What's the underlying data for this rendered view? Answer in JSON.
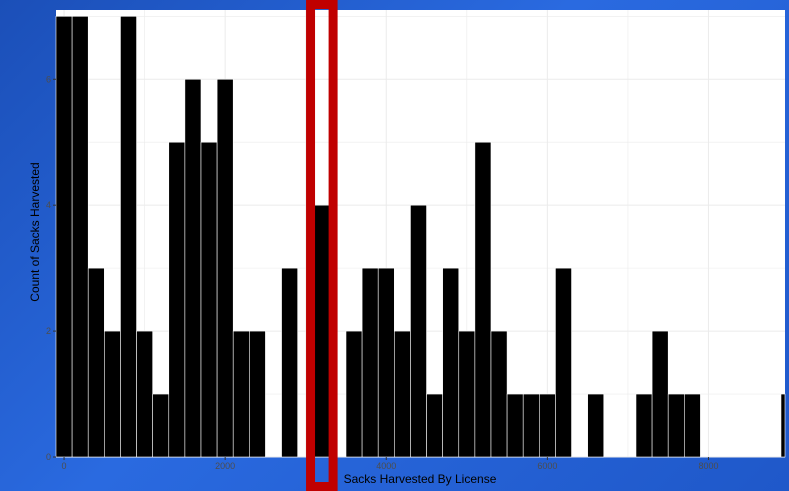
{
  "chart_data": {
    "type": "bar",
    "xlabel": "Sacks Harvested By License",
    "ylabel": "Count of Sacks Harvested",
    "xlim": [
      -100,
      8950
    ],
    "ylim": [
      0,
      7.1
    ],
    "x_ticks": [
      0,
      2000,
      4000,
      6000,
      8000
    ],
    "x_tick_labels": [
      "0",
      "2000",
      "4000",
      "6000",
      "8000"
    ],
    "y_ticks": [
      0,
      2,
      4,
      6
    ],
    "y_tick_labels": [
      "0",
      "2",
      "4",
      "6"
    ],
    "grid": true,
    "legend": "none",
    "bin_width": 200,
    "bins": [
      {
        "start": -100,
        "end": 100,
        "count": 7
      },
      {
        "start": 100,
        "end": 300,
        "count": 7
      },
      {
        "start": 300,
        "end": 500,
        "count": 3
      },
      {
        "start": 500,
        "end": 700,
        "count": 2
      },
      {
        "start": 700,
        "end": 900,
        "count": 7
      },
      {
        "start": 900,
        "end": 1100,
        "count": 2
      },
      {
        "start": 1100,
        "end": 1300,
        "count": 1
      },
      {
        "start": 1300,
        "end": 1500,
        "count": 5
      },
      {
        "start": 1500,
        "end": 1700,
        "count": 6
      },
      {
        "start": 1700,
        "end": 1900,
        "count": 5
      },
      {
        "start": 1900,
        "end": 2100,
        "count": 6
      },
      {
        "start": 2100,
        "end": 2300,
        "count": 2
      },
      {
        "start": 2300,
        "end": 2500,
        "count": 2
      },
      {
        "start": 2700,
        "end": 2900,
        "count": 3
      },
      {
        "start": 3100,
        "end": 3300,
        "count": 4
      },
      {
        "start": 3500,
        "end": 3700,
        "count": 2
      },
      {
        "start": 3700,
        "end": 3900,
        "count": 3
      },
      {
        "start": 3900,
        "end": 4100,
        "count": 3
      },
      {
        "start": 4100,
        "end": 4300,
        "count": 2
      },
      {
        "start": 4300,
        "end": 4500,
        "count": 4
      },
      {
        "start": 4500,
        "end": 4700,
        "count": 1
      },
      {
        "start": 4700,
        "end": 4900,
        "count": 3
      },
      {
        "start": 4900,
        "end": 5100,
        "count": 2
      },
      {
        "start": 5100,
        "end": 5300,
        "count": 5
      },
      {
        "start": 5300,
        "end": 5500,
        "count": 2
      },
      {
        "start": 5500,
        "end": 5700,
        "count": 1
      },
      {
        "start": 5700,
        "end": 5900,
        "count": 1
      },
      {
        "start": 5900,
        "end": 6100,
        "count": 1
      },
      {
        "start": 6100,
        "end": 6300,
        "count": 3
      },
      {
        "start": 6500,
        "end": 6700,
        "count": 1
      },
      {
        "start": 7100,
        "end": 7300,
        "count": 1
      },
      {
        "start": 7300,
        "end": 7500,
        "count": 2
      },
      {
        "start": 7500,
        "end": 7700,
        "count": 1
      },
      {
        "start": 7700,
        "end": 7900,
        "count": 1
      },
      {
        "start": 8900,
        "end": 9100,
        "count": 1
      }
    ],
    "highlight": {
      "x_start": 3060,
      "x_end": 3340,
      "color": "#c00000"
    },
    "colors": {
      "bar_fill": "#000000",
      "bar_edge": "#ffffff",
      "grid": "#ebebeb",
      "panel": "#ffffff",
      "axis_text": "#4d4d4d"
    }
  }
}
